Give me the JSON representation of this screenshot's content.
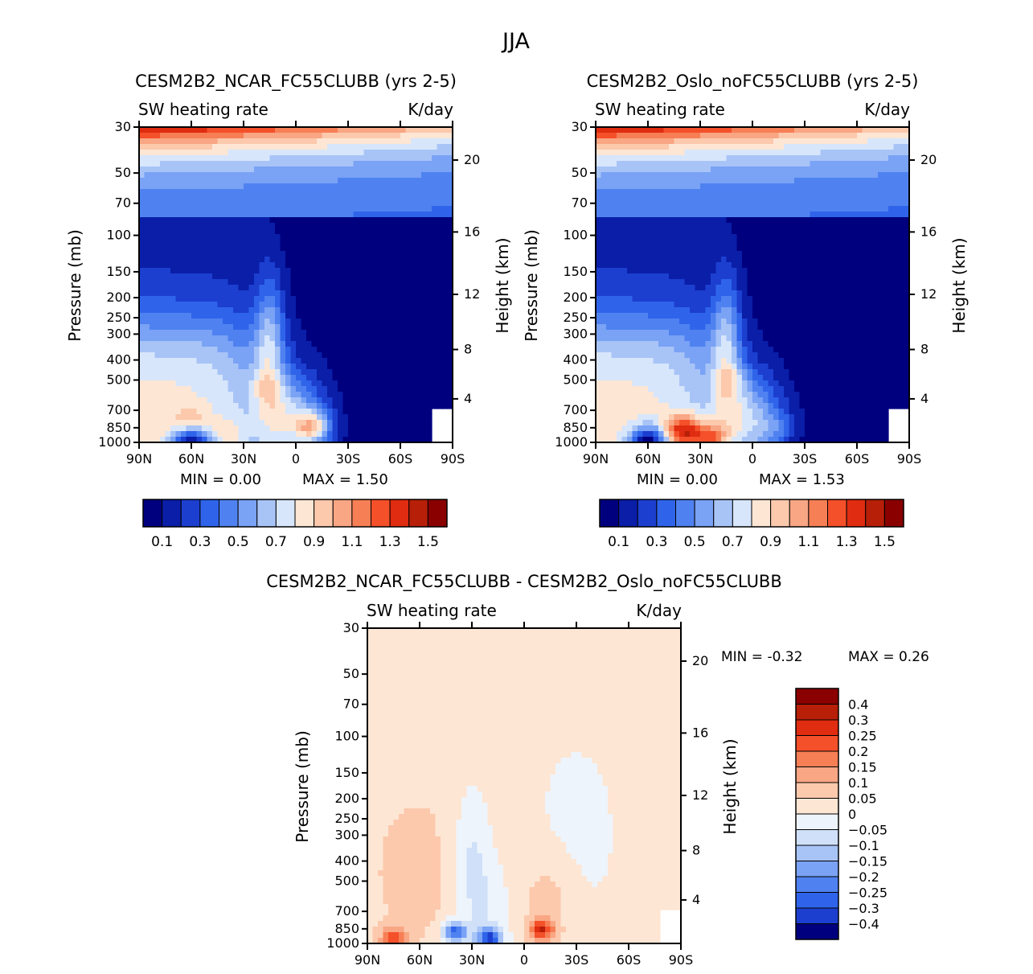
{
  "figure": {
    "season": "JJA",
    "variable_label": "SW heating rate",
    "units_label": "K/day"
  },
  "axes": {
    "pressure_label": "Pressure (mb)",
    "height_label": "Height (km)",
    "pressure_ticks": [
      "30",
      "50",
      "70",
      "100",
      "150",
      "200",
      "250",
      "300",
      "400",
      "500",
      "700",
      "850",
      "1000"
    ],
    "pressure_values": [
      30,
      50,
      70,
      100,
      150,
      200,
      250,
      300,
      400,
      500,
      700,
      850,
      1000
    ],
    "height_ticks": [
      "20",
      "16",
      "12",
      "8",
      "4"
    ],
    "height_values": [
      20,
      16,
      12,
      8,
      4
    ],
    "lat_ticks": [
      "90N",
      "60N",
      "30N",
      "0",
      "30S",
      "60S",
      "90S"
    ],
    "lat_values": [
      90,
      60,
      30,
      0,
      -30,
      -60,
      -90
    ]
  },
  "chart_data": [
    {
      "type": "heatmap",
      "title": "CESM2B2_NCAR_FC55CLUBB (yrs 2-5)",
      "xlabel": "",
      "ylabel": "Pressure (mb)",
      "xlim": [
        90,
        -90
      ],
      "ylim": [
        1000,
        30
      ],
      "min_text": "MIN =    0.00",
      "max_text": "MAX =     1.50",
      "min": 0.0,
      "max": 1.5,
      "colorbar_levels": [
        0.1,
        0.2,
        0.3,
        0.4,
        0.5,
        0.6,
        0.7,
        0.8,
        0.9,
        1.0,
        1.1,
        1.2,
        1.3,
        1.4,
        1.5
      ],
      "colorbar_labels": [
        "0.1",
        "0.3",
        "0.5",
        "0.7",
        "0.9",
        "1.1",
        "1.3",
        "1.5"
      ],
      "colorbar_colors": [
        "#00007f",
        "#0a1ea8",
        "#1c3fd0",
        "#2f64ea",
        "#4f82f0",
        "#7aa2f5",
        "#a8c4f7",
        "#d7e6fb",
        "#fde6d4",
        "#fcc9ad",
        "#f9a684",
        "#f77f55",
        "#f4502a",
        "#e02c10",
        "#b71f08",
        "#8a0000"
      ],
      "features": [
        {
          "lat": 88,
          "p": 40,
          "value": 1.45
        },
        {
          "lat": 60,
          "p": 810,
          "value": 1.05
        },
        {
          "lat": 37,
          "p": 900,
          "value": 1.0
        },
        {
          "lat": -10,
          "p": 840,
          "value": 1.4
        },
        {
          "lat": 18,
          "p": 540,
          "value": 1.0
        },
        {
          "lat": 60,
          "p": 960,
          "value": 0.4
        }
      ]
    },
    {
      "type": "heatmap",
      "title": "CESM2B2_Oslo_noFC55CLUBB (yrs 2-5)",
      "xlabel": "",
      "ylabel": "Pressure (mb)",
      "xlim": [
        90,
        -90
      ],
      "ylim": [
        1000,
        30
      ],
      "min_text": "MIN =    0.00",
      "max_text": "MAX =     1.53",
      "min": 0.0,
      "max": 1.53,
      "colorbar_levels": [
        0.1,
        0.2,
        0.3,
        0.4,
        0.5,
        0.6,
        0.7,
        0.8,
        0.9,
        1.0,
        1.1,
        1.2,
        1.3,
        1.4,
        1.5
      ],
      "colorbar_labels": [
        "0.1",
        "0.3",
        "0.5",
        "0.7",
        "0.9",
        "1.1",
        "1.3",
        "1.5"
      ],
      "colorbar_colors": [
        "#00007f",
        "#0a1ea8",
        "#1c3fd0",
        "#2f64ea",
        "#4f82f0",
        "#7aa2f5",
        "#a8c4f7",
        "#d7e6fb",
        "#fde6d4",
        "#fcc9ad",
        "#f9a684",
        "#f77f55",
        "#f4502a",
        "#e02c10",
        "#b71f08",
        "#8a0000"
      ],
      "features": [
        {
          "lat": 88,
          "p": 40,
          "value": 1.45
        },
        {
          "lat": 40,
          "p": 880,
          "value": 1.5
        },
        {
          "lat": 25,
          "p": 950,
          "value": 1.4
        },
        {
          "lat": 12,
          "p": 500,
          "value": 1.0
        },
        {
          "lat": -15,
          "p": 850,
          "value": 1.0
        },
        {
          "lat": 60,
          "p": 960,
          "value": 0.4
        }
      ]
    },
    {
      "type": "heatmap",
      "title": "CESM2B2_NCAR_FC55CLUBB - CESM2B2_Oslo_noFC55CLUBB",
      "xlabel": "",
      "ylabel": "Pressure (mb)",
      "xlim": [
        90,
        -90
      ],
      "ylim": [
        1000,
        30
      ],
      "min_text": "MIN =   -0.32",
      "max_text": "MAX =     0.26",
      "min": -0.32,
      "max": 0.26,
      "colorbar_levels": [
        0.4,
        0.3,
        0.25,
        0.2,
        0.15,
        0.1,
        0.05,
        0,
        -0.05,
        -0.1,
        -0.15,
        -0.2,
        -0.25,
        -0.3,
        -0.4
      ],
      "colorbar_labels": [
        "0.4",
        "0.3",
        "0.25",
        "0.2",
        "0.15",
        "0.1",
        "0.05",
        "0",
        "−0.05",
        "−0.1",
        "−0.15",
        "−0.2",
        "−0.25",
        "−0.3",
        "−0.4"
      ],
      "colorbar_colors": [
        "#8a0000",
        "#b71f08",
        "#e02c10",
        "#f4502a",
        "#f77f55",
        "#f9a684",
        "#fcc9ad",
        "#fde6d4",
        "#eef4fb",
        "#cfe0f8",
        "#a8c4f7",
        "#7aa2f5",
        "#4f82f0",
        "#2f64ea",
        "#1c3fd0",
        "#00007f"
      ],
      "features": [
        {
          "lat": -10,
          "p": 860,
          "value": 0.25
        },
        {
          "lat": 40,
          "p": 880,
          "value": -0.3
        },
        {
          "lat": 20,
          "p": 950,
          "value": -0.32
        },
        {
          "lat": 75,
          "p": 950,
          "value": 0.2
        }
      ]
    }
  ]
}
